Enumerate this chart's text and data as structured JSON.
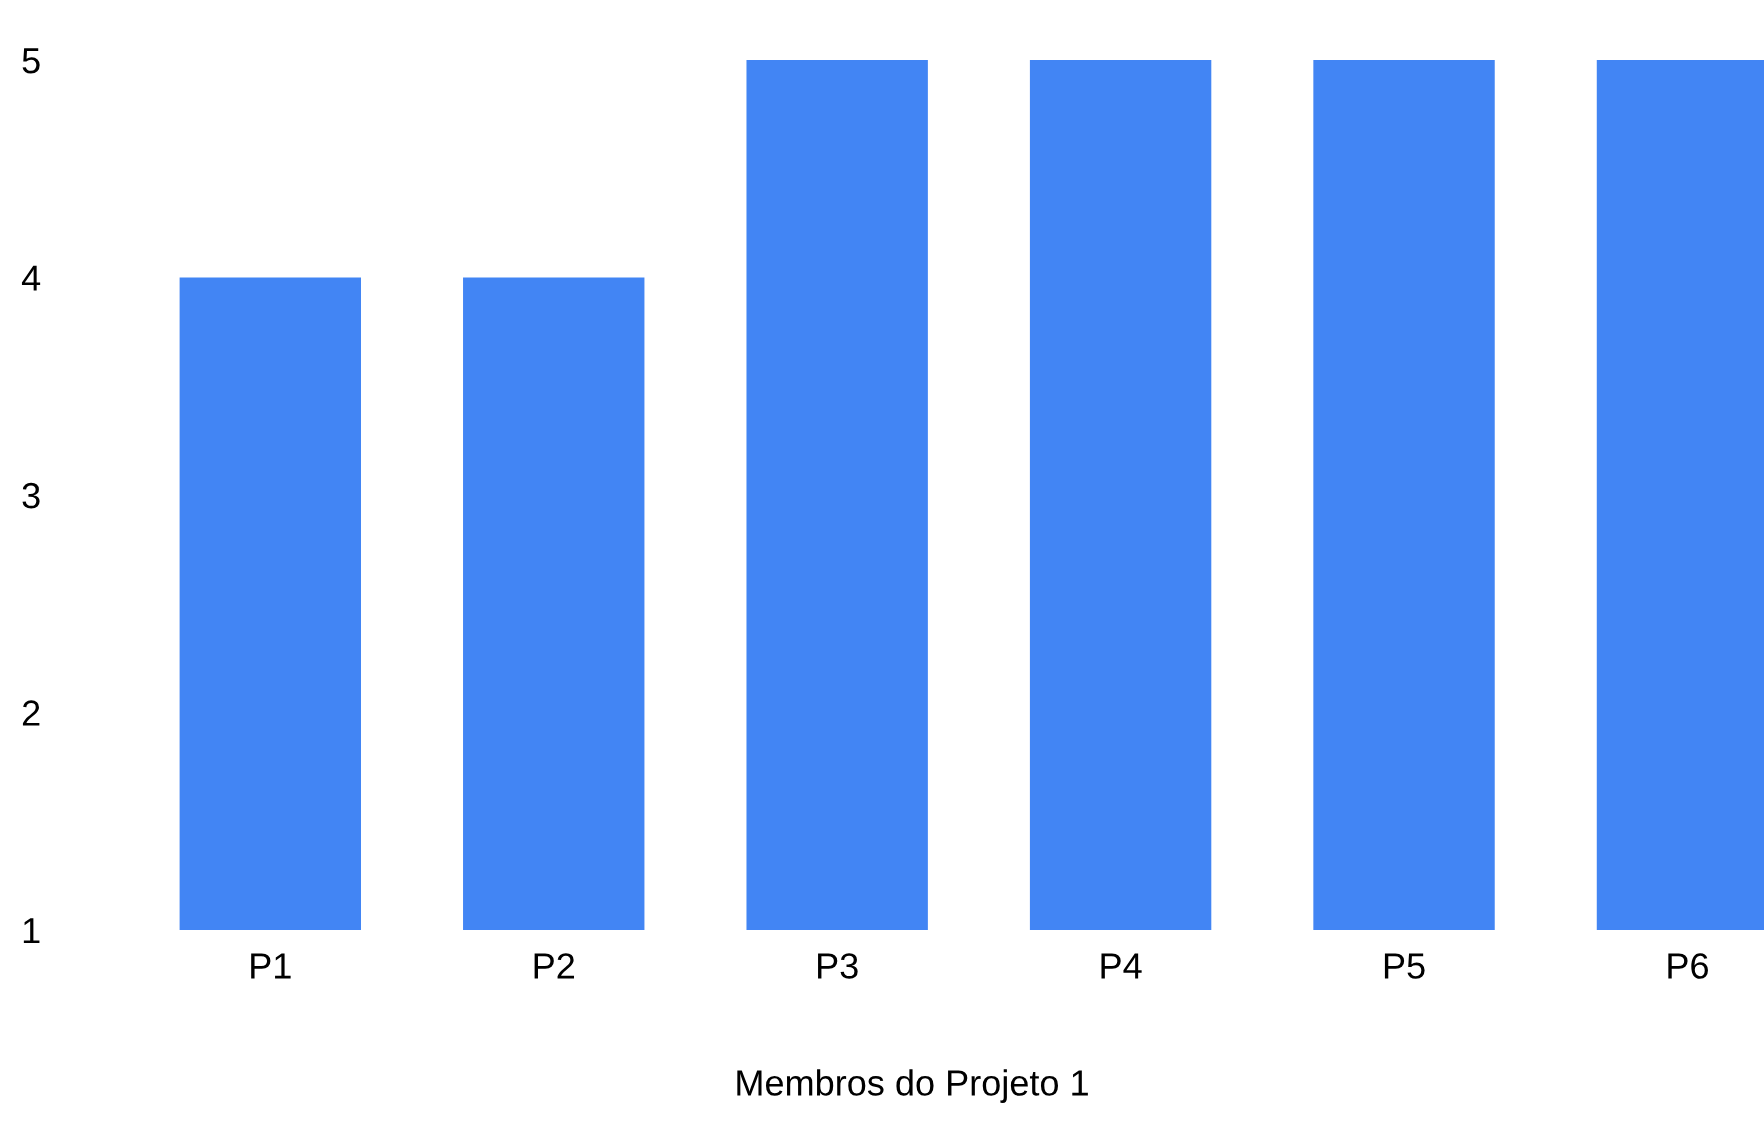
{
  "chart_data": {
    "type": "bar",
    "xlabel": "Membros do Projeto 1",
    "categories": [
      "P1",
      "P2",
      "P3",
      "P4",
      "P5",
      "P6"
    ],
    "values": [
      4,
      4,
      5,
      5,
      5,
      5
    ],
    "color": "#4285f4",
    "ylim": [
      1,
      5
    ],
    "yticks": [
      1,
      2,
      3,
      4,
      5
    ],
    "grid": false,
    "legend": false
  }
}
